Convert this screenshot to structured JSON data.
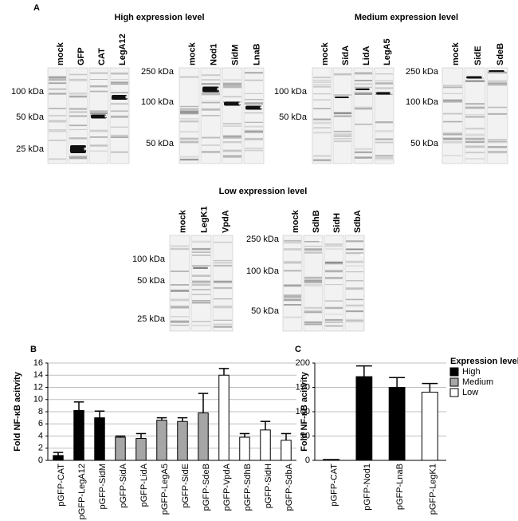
{
  "panel_labels": [
    "A",
    "B",
    "C"
  ],
  "blot_mark": "*",
  "blots": [
    {
      "title": "High expression level",
      "groups": [
        {
          "markers": [
            "100 kDa",
            "50 kDa",
            "25 kDa"
          ],
          "lanes": [
            "mock",
            "GFP",
            "CAT",
            "LegA12"
          ]
        },
        {
          "markers": [
            "250 kDa",
            "100 kDa",
            "50 kDa"
          ],
          "lanes": [
            "mock",
            "Nod1",
            "SidM",
            "LnaB"
          ]
        }
      ]
    },
    {
      "title": "Medium expression level",
      "groups": [
        {
          "markers": [
            "100 kDa",
            "50 kDa"
          ],
          "lanes": [
            "mock",
            "SidA",
            "LidA",
            "LegA5"
          ]
        },
        {
          "markers": [
            "250 kDa",
            "100 kDa",
            "50 kDa"
          ],
          "lanes": [
            "mock",
            "SidE",
            "SdeB"
          ]
        }
      ]
    },
    {
      "title": "Low expression level",
      "groups": [
        {
          "markers": [
            "100 kDa",
            "50 kDa",
            "25 kDa"
          ],
          "lanes": [
            "mock",
            "LegK1",
            "VpdA"
          ]
        },
        {
          "markers": [
            "250 kDa",
            "100 kDa",
            "50 kDa"
          ],
          "lanes": [
            "mock",
            "SdhB",
            "SidH",
            "SdbA"
          ]
        }
      ]
    }
  ],
  "chart_data": [
    {
      "type": "bar",
      "y_label": "Fold NF-κB acitvity",
      "categories": [
        "pGFP-CAT",
        "pGFP-LegA12",
        "pGFP-SidM",
        "pGFP-SidA",
        "pGFP-LidA",
        "pGFP-LegA5",
        "pGFP-SidE",
        "pGFP-SdeB",
        "pGFP-VpdA",
        "pGFP-SdhB",
        "pGFP-SidH",
        "pGFP-SdbA"
      ],
      "series": [
        {
          "name": "High",
          "color": "#000000",
          "values": [
            0.8,
            8.2,
            7,
            null,
            null,
            null,
            null,
            null,
            null,
            null,
            null,
            null
          ],
          "errors": [
            0.5,
            1.4,
            1.1,
            null,
            null,
            null,
            null,
            null,
            null,
            null,
            null,
            null
          ]
        },
        {
          "name": "Medium",
          "color": "#a6a6a6",
          "values": [
            null,
            null,
            null,
            3.8,
            3.6,
            6.6,
            6.4,
            7.8,
            null,
            null,
            null,
            null
          ],
          "errors": [
            null,
            null,
            null,
            0.2,
            0.8,
            0.4,
            0.6,
            3.2,
            null,
            null,
            null,
            null
          ]
        },
        {
          "name": "Low",
          "color": "#ffffff",
          "values": [
            null,
            null,
            null,
            null,
            null,
            null,
            null,
            null,
            14,
            3.8,
            5,
            3.3
          ],
          "errors": [
            null,
            null,
            null,
            null,
            null,
            null,
            null,
            null,
            1.1,
            0.6,
            1.4,
            1.1
          ]
        }
      ],
      "ylim": [
        0,
        16
      ],
      "yticks": [
        0,
        2,
        4,
        6,
        8,
        10,
        12,
        14,
        16
      ],
      "grid": true,
      "legend": false
    },
    {
      "type": "bar",
      "y_label": "Fold NF-κB acitvity",
      "categories": [
        "pGFP-CAT",
        "pGFP-Nod1",
        "pGFP-LnaB",
        "pGFP-LegK1"
      ],
      "series": [
        {
          "name": "High",
          "color": "#000000",
          "values": [
            2,
            172,
            150,
            null
          ],
          "errors": [
            null,
            22,
            20,
            null
          ]
        },
        {
          "name": "Medium",
          "color": "#a6a6a6",
          "values": [
            null,
            null,
            null,
            null
          ],
          "errors": [
            null,
            null,
            null,
            null
          ]
        },
        {
          "name": "Low",
          "color": "#ffffff",
          "values": [
            null,
            null,
            null,
            140
          ],
          "errors": [
            null,
            null,
            null,
            18
          ]
        }
      ],
      "ylim": [
        0,
        200
      ],
      "yticks": [
        0,
        50,
        100,
        150,
        200
      ],
      "grid": true,
      "legend": true,
      "legend_title": "Expression level:"
    }
  ]
}
